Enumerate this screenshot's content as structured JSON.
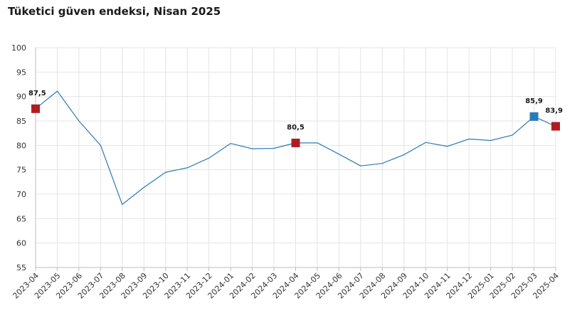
{
  "chart_data": {
    "type": "line",
    "title": "Tüketici güven endeksi, Nisan 2025",
    "xlabel": "",
    "ylabel": "",
    "ylim": [
      55,
      100
    ],
    "yticks": [
      55,
      60,
      65,
      70,
      75,
      80,
      85,
      90,
      95,
      100
    ],
    "grid": true,
    "legend": "none",
    "line_color": "#2a7ab8",
    "categories": [
      "2023-04",
      "2023-05",
      "2023-06",
      "2023-07",
      "2023-08",
      "2023-09",
      "2023-10",
      "2023-11",
      "2023-12",
      "2024-01",
      "2024-02",
      "2024-03",
      "2024-04",
      "2024-05",
      "2024-06",
      "2024-07",
      "2024-08",
      "2024-09",
      "2024-10",
      "2024-11",
      "2024-12",
      "2025-01",
      "2025-02",
      "2025-03",
      "2025-04"
    ],
    "values": [
      87.5,
      91.1,
      85.0,
      80.0,
      67.9,
      71.4,
      74.5,
      75.4,
      77.4,
      80.4,
      79.3,
      79.4,
      80.5,
      80.5,
      78.2,
      75.8,
      76.3,
      78.1,
      80.6,
      79.8,
      81.3,
      81.0,
      82.1,
      85.9,
      83.9
    ],
    "highlights": [
      {
        "index": 0,
        "label": "87,5",
        "color": "#b01c22"
      },
      {
        "index": 12,
        "label": "80,5",
        "color": "#b01c22"
      },
      {
        "index": 23,
        "label": "85,9",
        "color": "#2a7ab8"
      },
      {
        "index": 24,
        "label": "83,9",
        "color": "#b01c22"
      }
    ]
  }
}
